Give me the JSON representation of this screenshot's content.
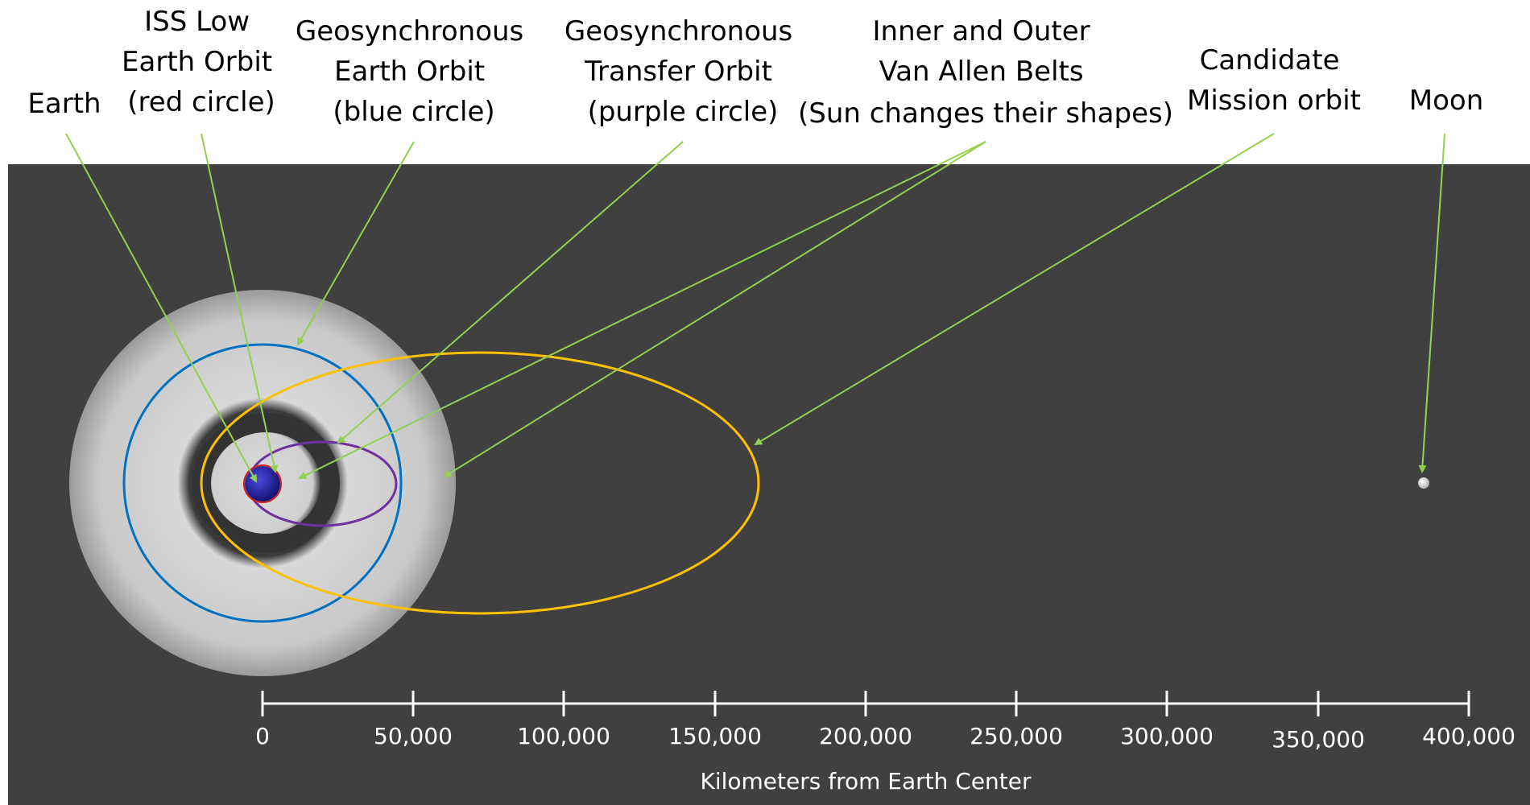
{
  "labels": {
    "earth": [
      "Earth"
    ],
    "iss": [
      "ISS Low",
      "Earth Orbit",
      "(red circle)"
    ],
    "geo": [
      "Geosynchronous",
      "Earth Orbit",
      "(blue circle)"
    ],
    "gto": [
      "Geosynchronous",
      "Transfer Orbit",
      "(purple circle)"
    ],
    "belts": [
      "Inner and Outer",
      "Van Allen Belts",
      "(Sun changes their shapes)"
    ],
    "candidate": [
      "Candidate",
      "Mission orbit"
    ],
    "moon": [
      "Moon"
    ]
  },
  "axis": {
    "title": "Kilometers from Earth Center",
    "ticks": [
      "0",
      "50,000",
      "100,000",
      "150,000",
      "200,000",
      "250,000",
      "300,000",
      "350,000",
      "400,000"
    ]
  },
  "colors": {
    "background": "#404040",
    "belts": "#c4c4c4",
    "earth": "#1c1ca0",
    "iss_orbit": "#d02020",
    "geo_orbit": "#0070c0",
    "gto_orbit": "#7030a0",
    "candidate_orbit": "#ffc000",
    "pointer": "#92d050",
    "axis": "#ffffff"
  }
}
